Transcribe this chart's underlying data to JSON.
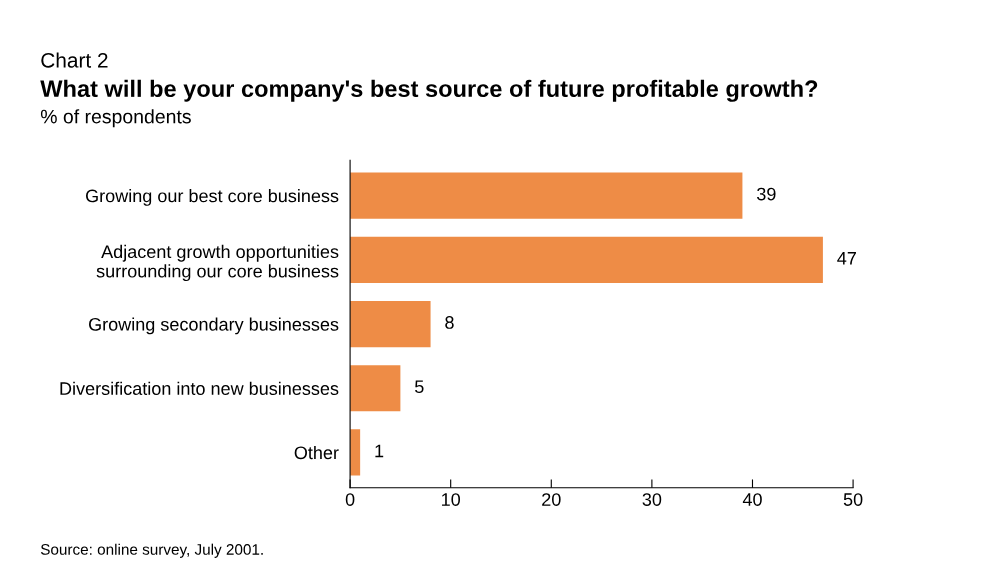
{
  "chart_data": {
    "type": "bar",
    "orientation": "horizontal",
    "title": "What will be your company's best source of future profitable growth?",
    "subtitle": "% of respondents",
    "annotations": [
      "Chart 2",
      "Source: online survey, July 2001."
    ],
    "categories": [
      "Growing our best core business",
      "Adjacent growth opportunities\nsurrounding our core business",
      "Growing secondary businesses",
      "Diversification into new businesses",
      "Other"
    ],
    "values": [
      39,
      47,
      8,
      5,
      1
    ],
    "color": "#ee8c46",
    "data_labels": true,
    "xlim": [
      0,
      50
    ],
    "xticks": [
      0,
      10,
      20,
      30,
      40,
      50
    ],
    "grid": false,
    "legend": false
  }
}
